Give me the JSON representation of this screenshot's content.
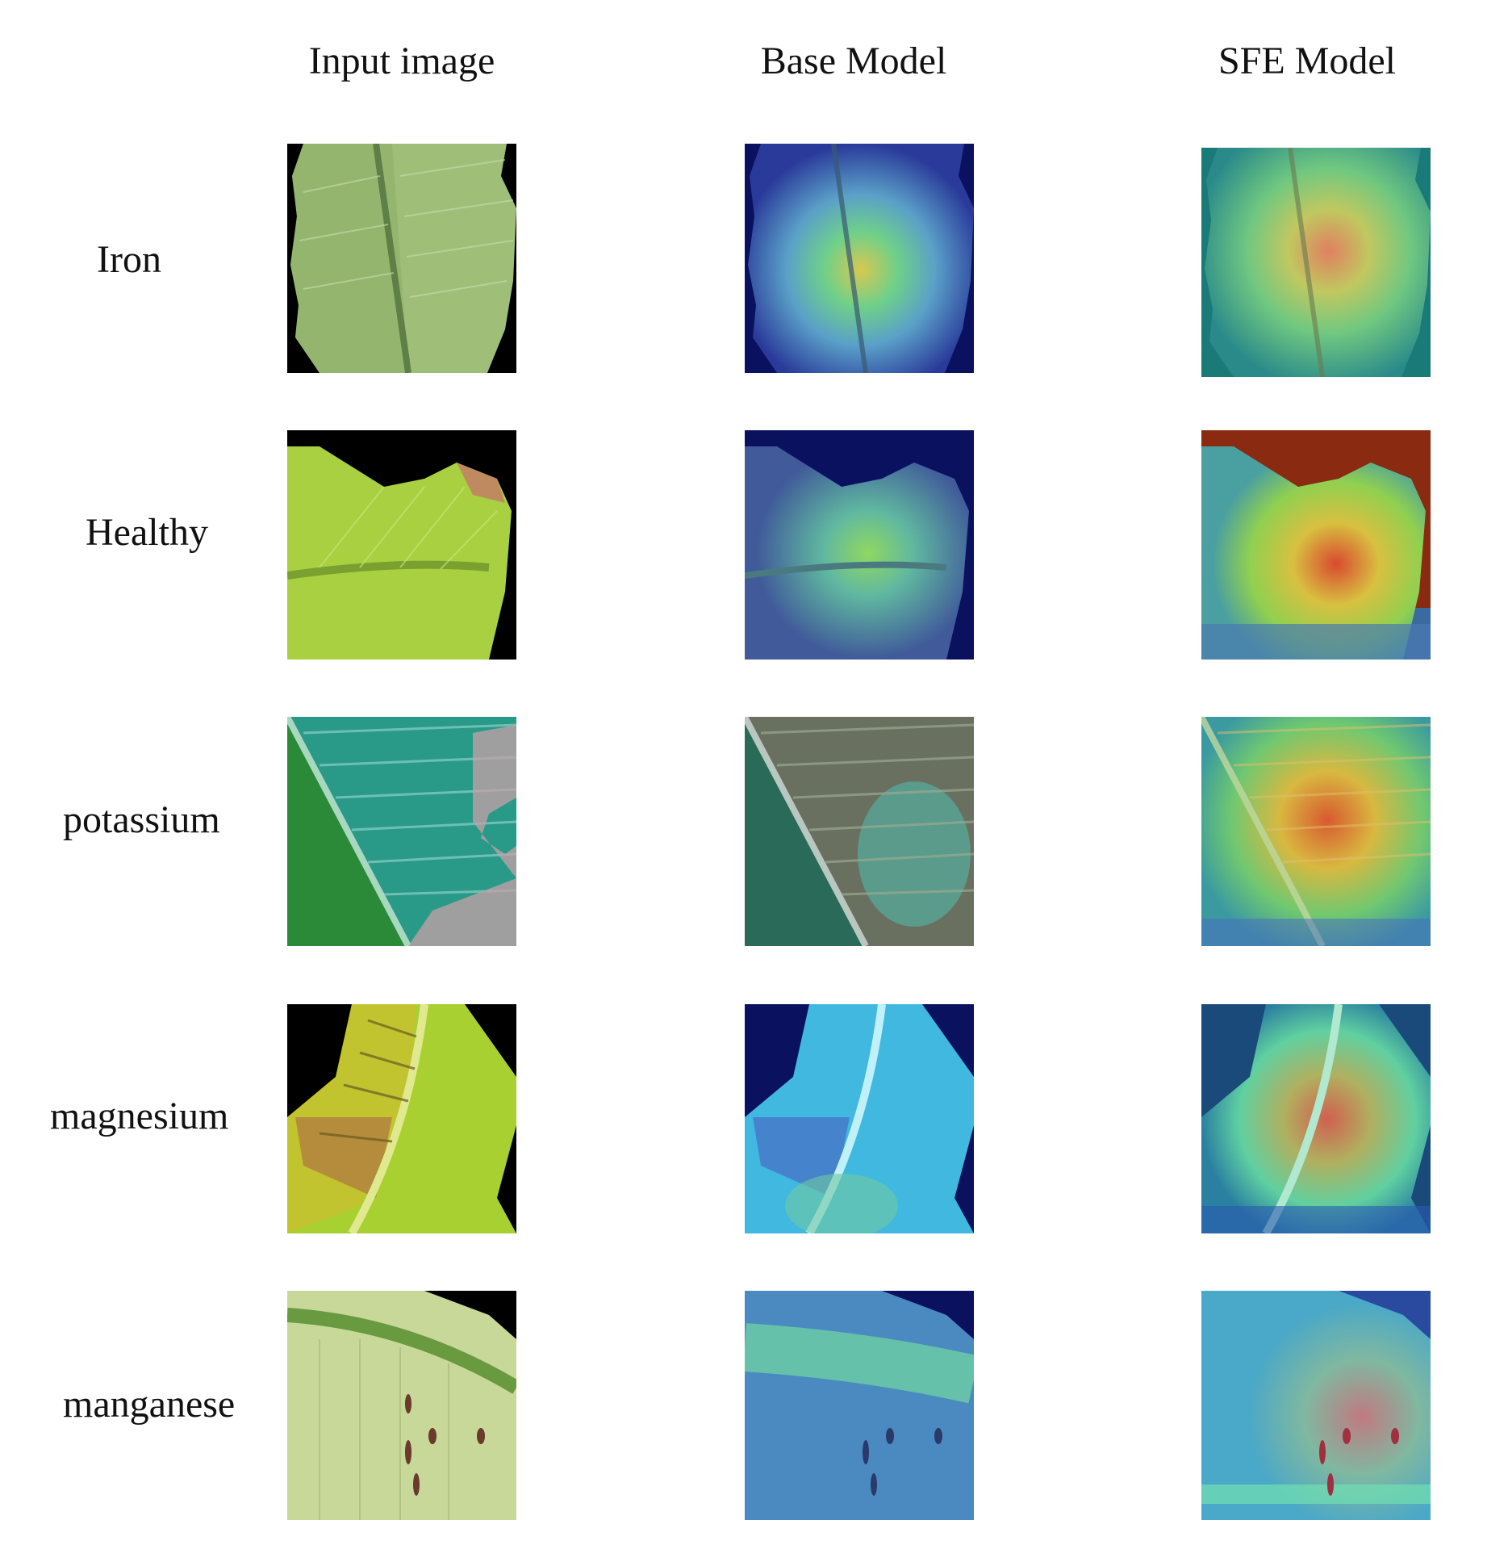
{
  "columns": [
    "Input image",
    "Base Model",
    "SFE Model"
  ],
  "rows": [
    {
      "label": "Iron"
    },
    {
      "label": "Healthy"
    },
    {
      "label": "potassium"
    },
    {
      "label": "magnesium"
    },
    {
      "label": "manganese"
    }
  ]
}
